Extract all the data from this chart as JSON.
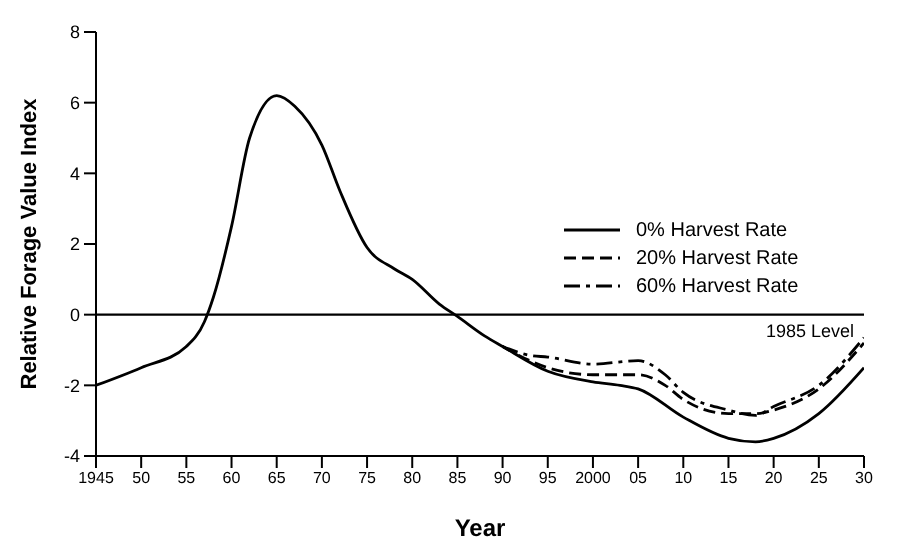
{
  "chart_data": {
    "type": "line",
    "xlabel": "Year",
    "ylabel": "Relative Forage Value Index",
    "xlim": [
      1945,
      2030
    ],
    "xticks": [
      1945,
      {
        "value": 1950,
        "label": "50"
      },
      {
        "value": 1955,
        "label": "55"
      },
      {
        "value": 1960,
        "label": "60"
      },
      {
        "value": 1965,
        "label": "65"
      },
      {
        "value": 1970,
        "label": "70"
      },
      {
        "value": 1975,
        "label": "75"
      },
      {
        "value": 1980,
        "label": "80"
      },
      {
        "value": 1985,
        "label": "85"
      },
      {
        "value": 1990,
        "label": "90"
      },
      {
        "value": 1995,
        "label": "95"
      },
      2000,
      {
        "value": 2005,
        "label": "05"
      },
      {
        "value": 2010,
        "label": "10"
      },
      {
        "value": 2015,
        "label": "15"
      },
      {
        "value": 2020,
        "label": "20"
      },
      {
        "value": 2025,
        "label": "25"
      },
      {
        "value": 2030,
        "label": "30"
      }
    ],
    "ylim": [
      -4,
      8
    ],
    "yticks": [
      -4,
      -2,
      0,
      2,
      4,
      6,
      8
    ],
    "grid": false,
    "legend": "right",
    "marker": "none",
    "ref_lines": [
      {
        "axis": "y",
        "value": 0,
        "label": "1985 Level",
        "color": "#000000"
      }
    ],
    "series": [
      {
        "name": "0% Harvest Rate",
        "color": "#000000",
        "line_style": "solid",
        "x": [
          1945,
          1950,
          1955,
          1957,
          1958,
          1960,
          1962,
          1965,
          1967,
          1970,
          1972,
          1975,
          1978,
          1980,
          1983,
          1985,
          1988,
          1990,
          1995,
          2000,
          2003,
          2005,
          2010,
          2015,
          2018,
          2020,
          2025,
          2030
        ],
        "values": [
          -2,
          -1.5,
          -0.9,
          -0.2,
          0.5,
          2.5,
          5,
          6.2,
          5.9,
          4.8,
          3.5,
          1.9,
          1.3,
          1,
          0.3,
          -0.05,
          -0.6,
          -0.9,
          -1.6,
          -1.9,
          -2,
          -2.1,
          -2.9,
          -3.5,
          -3.6,
          -3.5,
          -2.8,
          -1.5
        ]
      },
      {
        "name": "20% Harvest Rate",
        "color": "#000000",
        "line_style": "dashed",
        "x": [
          1990,
          1993,
          1995,
          2000,
          2005,
          2008,
          2010,
          2015,
          2018,
          2020,
          2025,
          2030
        ],
        "values": [
          -0.9,
          -1.3,
          -1.5,
          -1.7,
          -1.7,
          -2,
          -2.4,
          -2.8,
          -2.8,
          -2.7,
          -2.1,
          -0.8
        ]
      },
      {
        "name": "60% Harvest Rate",
        "color": "#000000",
        "line_style": "dashdot",
        "x": [
          1990,
          1993,
          1995,
          2000,
          2005,
          2008,
          2010,
          2015,
          2018,
          2020,
          2025,
          2030
        ],
        "values": [
          -0.9,
          -1.15,
          -1.2,
          -1.4,
          -1.3,
          -1.7,
          -2.2,
          -2.7,
          -2.85,
          -2.6,
          -2,
          -0.65
        ]
      }
    ]
  }
}
